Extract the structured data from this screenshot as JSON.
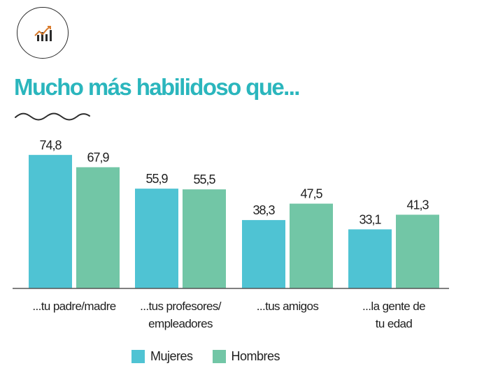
{
  "header": {
    "logo_icon": "bar-chart-trend-icon",
    "title": "Mucho más habilidoso que...",
    "divider_icon": "wavy-line-icon"
  },
  "colors": {
    "title": "#2bb6bd",
    "mujeres": "#4fc3d3",
    "hombres": "#72c6a6",
    "baseline": "#555555"
  },
  "chart_data": {
    "type": "bar",
    "title": "Mucho más habilidoso que...",
    "categories": [
      [
        "...tu padre/madre"
      ],
      [
        "...tus profesores/",
        "empleadores"
      ],
      [
        "...tus amigos"
      ],
      [
        "...la gente de",
        "tu edad"
      ]
    ],
    "series": [
      {
        "name": "Mujeres",
        "values": [
          74.8,
          55.9,
          38.3,
          33.1
        ],
        "labels": [
          "74,8",
          "55,9",
          "38,3",
          "33,1"
        ]
      },
      {
        "name": "Hombres",
        "values": [
          67.9,
          55.5,
          47.5,
          41.3
        ],
        "labels": [
          "67,9",
          "55,5",
          "47,5",
          "41,3"
        ]
      }
    ],
    "ylim": [
      0,
      80
    ],
    "grid": false,
    "legend_position": "bottom"
  },
  "legend": {
    "items": [
      {
        "label": "Mujeres",
        "color": "#4fc3d3"
      },
      {
        "label": "Hombres",
        "color": "#72c6a6"
      }
    ]
  }
}
